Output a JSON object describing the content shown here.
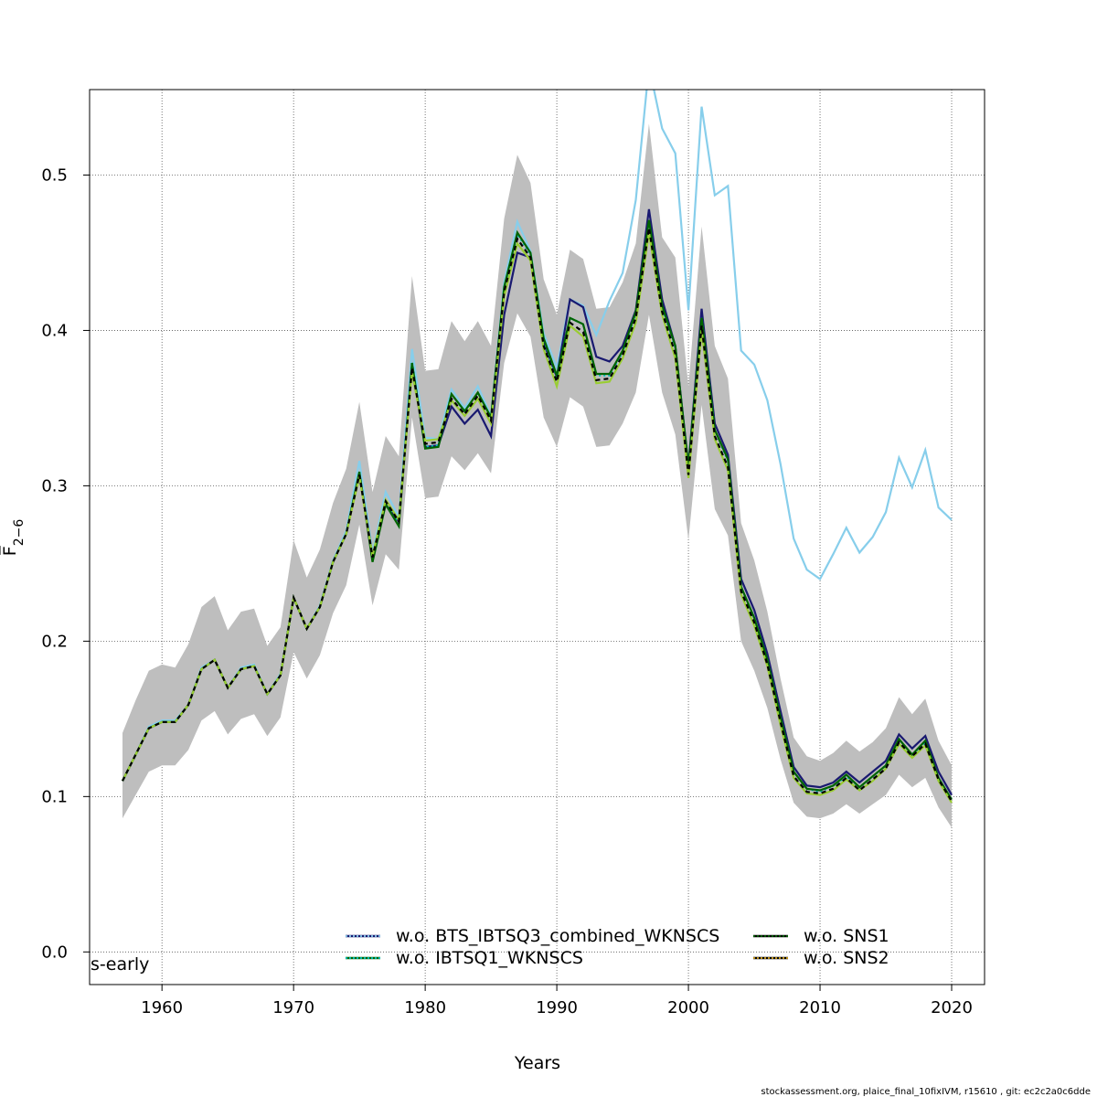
{
  "chart_data": {
    "type": "line",
    "xlabel": "Years",
    "ylabel": "F̅",
    "ylabel_sub": "2−6",
    "xlim": [
      1954.5,
      2022.5
    ],
    "ylim": [
      -0.021,
      0.555
    ],
    "xticks": [
      1960,
      1970,
      1980,
      1990,
      2000,
      2010,
      2020
    ],
    "yticks": [
      0.0,
      0.1,
      0.2,
      0.3,
      0.4,
      0.5
    ],
    "xtick_labels": [
      "1960",
      "1970",
      "1980",
      "1990",
      "2000",
      "2010",
      "2020"
    ],
    "ytick_labels": [
      "0.0",
      "0.1",
      "0.2",
      "0.3",
      "0.4",
      "0.5"
    ],
    "grid": true,
    "corner_label": "s-early",
    "years": [
      1957,
      1958,
      1959,
      1960,
      1961,
      1962,
      1963,
      1964,
      1965,
      1966,
      1967,
      1968,
      1969,
      1970,
      1971,
      1972,
      1973,
      1974,
      1975,
      1976,
      1977,
      1978,
      1979,
      1980,
      1981,
      1982,
      1983,
      1984,
      1985,
      1986,
      1987,
      1988,
      1989,
      1990,
      1991,
      1992,
      1993,
      1994,
      1995,
      1996,
      1997,
      1998,
      1999,
      2000,
      2001,
      2002,
      2003,
      2004,
      2005,
      2006,
      2007,
      2008,
      2009,
      2010,
      2011,
      2012,
      2013,
      2014,
      2015,
      2016,
      2017,
      2018,
      2019,
      2020
    ],
    "band": {
      "color": "#bebebe",
      "lower": [
        0.086,
        0.101,
        0.116,
        0.12,
        0.12,
        0.13,
        0.149,
        0.155,
        0.14,
        0.15,
        0.153,
        0.139,
        0.151,
        0.193,
        0.176,
        0.191,
        0.218,
        0.236,
        0.275,
        0.223,
        0.256,
        0.246,
        0.344,
        0.292,
        0.293,
        0.319,
        0.31,
        0.321,
        0.308,
        0.379,
        0.411,
        0.396,
        0.344,
        0.325,
        0.357,
        0.351,
        0.325,
        0.326,
        0.34,
        0.36,
        0.41,
        0.36,
        0.333,
        0.265,
        0.352,
        0.285,
        0.268,
        0.2,
        0.181,
        0.157,
        0.124,
        0.096,
        0.087,
        0.086,
        0.089,
        0.095,
        0.089,
        0.095,
        0.101,
        0.114,
        0.106,
        0.112,
        0.093,
        0.08
      ],
      "upper": [
        0.141,
        0.162,
        0.181,
        0.185,
        0.183,
        0.198,
        0.222,
        0.229,
        0.207,
        0.219,
        0.221,
        0.197,
        0.209,
        0.265,
        0.241,
        0.259,
        0.289,
        0.311,
        0.354,
        0.296,
        0.332,
        0.319,
        0.435,
        0.374,
        0.375,
        0.406,
        0.393,
        0.406,
        0.39,
        0.472,
        0.513,
        0.495,
        0.433,
        0.41,
        0.452,
        0.446,
        0.414,
        0.415,
        0.431,
        0.456,
        0.533,
        0.46,
        0.447,
        0.364,
        0.467,
        0.39,
        0.369,
        0.276,
        0.252,
        0.219,
        0.176,
        0.138,
        0.126,
        0.123,
        0.128,
        0.136,
        0.129,
        0.135,
        0.144,
        0.164,
        0.153,
        0.163,
        0.136,
        0.12
      ]
    },
    "series": [
      {
        "color": "#87ceeb",
        "dash": "solid",
        "values": [
          0.11,
          0.127,
          0.145,
          0.149,
          0.149,
          0.159,
          0.183,
          0.188,
          0.17,
          0.183,
          0.185,
          0.166,
          0.179,
          0.228,
          0.208,
          0.223,
          0.252,
          0.271,
          0.316,
          0.257,
          0.296,
          0.28,
          0.388,
          0.331,
          0.33,
          0.362,
          0.35,
          0.364,
          0.345,
          0.431,
          0.47,
          0.451,
          0.398,
          0.376,
          0.42,
          0.416,
          0.397,
          0.419,
          0.437,
          0.484,
          0.57,
          0.53,
          0.514,
          0.413,
          0.544,
          0.487,
          0.493,
          0.387,
          0.378,
          0.355,
          0.314,
          0.266,
          0.246,
          0.24,
          0.256,
          0.273,
          0.257,
          0.267,
          0.283,
          0.318,
          0.299,
          0.323,
          0.286,
          0.278
        ]
      },
      {
        "color": "#191970",
        "dash": "solid",
        "values": [
          0.11,
          0.127,
          0.144,
          0.148,
          0.148,
          0.159,
          0.182,
          0.188,
          0.17,
          0.182,
          0.184,
          0.166,
          0.178,
          0.228,
          0.208,
          0.222,
          0.251,
          0.269,
          0.308,
          0.255,
          0.288,
          0.277,
          0.377,
          0.325,
          0.326,
          0.351,
          0.34,
          0.349,
          0.332,
          0.41,
          0.45,
          0.447,
          0.392,
          0.37,
          0.42,
          0.415,
          0.383,
          0.38,
          0.39,
          0.413,
          0.478,
          0.42,
          0.39,
          0.313,
          0.414,
          0.34,
          0.32,
          0.24,
          0.22,
          0.192,
          0.155,
          0.119,
          0.107,
          0.106,
          0.109,
          0.116,
          0.109,
          0.116,
          0.123,
          0.14,
          0.131,
          0.139,
          0.116,
          0.101
        ]
      },
      {
        "color": "#00bfbf",
        "dash": "dotted",
        "values": [
          0.11,
          0.127,
          0.144,
          0.148,
          0.148,
          0.159,
          0.182,
          0.188,
          0.17,
          0.182,
          0.184,
          0.166,
          0.178,
          0.228,
          0.208,
          0.222,
          0.251,
          0.269,
          0.309,
          0.253,
          0.289,
          0.276,
          0.38,
          0.325,
          0.326,
          0.359,
          0.348,
          0.36,
          0.344,
          0.427,
          0.462,
          0.449,
          0.394,
          0.37,
          0.408,
          0.404,
          0.371,
          0.371,
          0.386,
          0.411,
          0.47,
          0.415,
          0.389,
          0.311,
          0.408,
          0.336,
          0.316,
          0.235,
          0.215,
          0.188,
          0.151,
          0.116,
          0.105,
          0.103,
          0.107,
          0.113,
          0.106,
          0.113,
          0.12,
          0.137,
          0.127,
          0.135,
          0.112,
          0.098
        ]
      },
      {
        "color": "#006400",
        "dash": "solid",
        "values": [
          0.11,
          0.127,
          0.144,
          0.148,
          0.148,
          0.159,
          0.182,
          0.188,
          0.17,
          0.182,
          0.184,
          0.166,
          0.178,
          0.228,
          0.208,
          0.222,
          0.251,
          0.269,
          0.309,
          0.251,
          0.288,
          0.274,
          0.379,
          0.324,
          0.325,
          0.359,
          0.348,
          0.36,
          0.344,
          0.428,
          0.463,
          0.45,
          0.395,
          0.371,
          0.408,
          0.404,
          0.372,
          0.372,
          0.387,
          0.412,
          0.471,
          0.416,
          0.39,
          0.312,
          0.408,
          0.336,
          0.317,
          0.235,
          0.215,
          0.188,
          0.151,
          0.116,
          0.105,
          0.104,
          0.107,
          0.114,
          0.106,
          0.113,
          0.12,
          0.137,
          0.127,
          0.136,
          0.112,
          0.098
        ]
      },
      {
        "color": "#9acd32",
        "dash": "solid",
        "values": [
          0.11,
          0.127,
          0.144,
          0.148,
          0.148,
          0.159,
          0.182,
          0.188,
          0.17,
          0.182,
          0.184,
          0.166,
          0.178,
          0.228,
          0.208,
          0.222,
          0.251,
          0.269,
          0.306,
          0.255,
          0.291,
          0.278,
          0.373,
          0.329,
          0.33,
          0.355,
          0.345,
          0.356,
          0.34,
          0.422,
          0.456,
          0.445,
          0.388,
          0.364,
          0.403,
          0.396,
          0.366,
          0.367,
          0.382,
          0.405,
          0.463,
          0.41,
          0.382,
          0.305,
          0.4,
          0.33,
          0.31,
          0.23,
          0.21,
          0.184,
          0.146,
          0.112,
          0.102,
          0.101,
          0.104,
          0.111,
          0.104,
          0.11,
          0.118,
          0.134,
          0.125,
          0.133,
          0.11,
          0.096
        ]
      },
      {
        "color": "#000000",
        "dash": "dashed",
        "values": [
          0.11,
          0.127,
          0.144,
          0.148,
          0.148,
          0.159,
          0.182,
          0.188,
          0.17,
          0.182,
          0.184,
          0.166,
          0.178,
          0.228,
          0.208,
          0.222,
          0.251,
          0.269,
          0.307,
          0.254,
          0.29,
          0.277,
          0.376,
          0.327,
          0.328,
          0.356,
          0.346,
          0.358,
          0.342,
          0.425,
          0.459,
          0.447,
          0.39,
          0.367,
          0.405,
          0.399,
          0.368,
          0.369,
          0.384,
          0.408,
          0.466,
          0.412,
          0.385,
          0.307,
          0.403,
          0.332,
          0.312,
          0.232,
          0.212,
          0.185,
          0.148,
          0.113,
          0.103,
          0.102,
          0.105,
          0.112,
          0.104,
          0.111,
          0.118,
          0.135,
          0.126,
          0.134,
          0.111,
          0.097
        ]
      }
    ],
    "legend": {
      "placement": "bottom",
      "entries": [
        {
          "label": "w.o. BTS_IBTSQ3_combined_WKNSCS",
          "color": "#191970",
          "dot_color": "#87ceeb"
        },
        {
          "label": "w.o. IBTSQ1_WKNSCS",
          "color": "#006400",
          "dot_color": "#00bfbf"
        },
        {
          "label": "w.o. SNS1",
          "color": "#000000",
          "dot_color": "#006400"
        },
        {
          "label": "w.o. SNS2",
          "color": "#000000",
          "dot_color": "#d4a017"
        }
      ]
    }
  },
  "footer": "stockassessment.org, plaice_final_10fixIVM, r15610 , git: ec2c2a0c6dde"
}
